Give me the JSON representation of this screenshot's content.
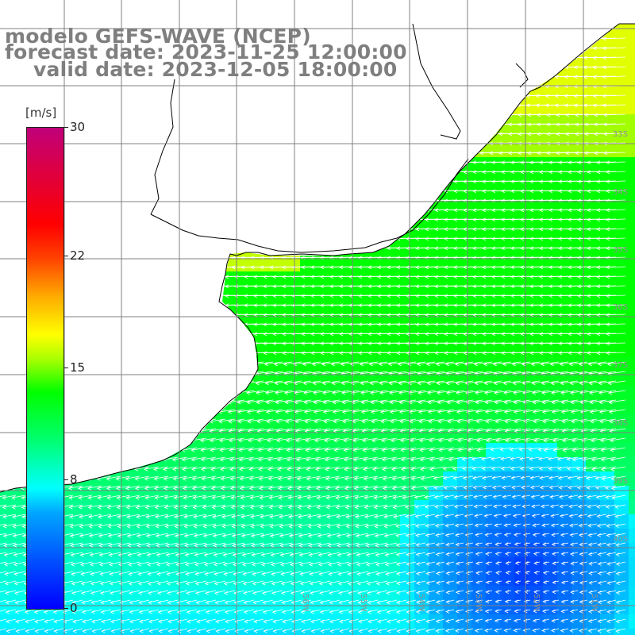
{
  "title": {
    "line1": "modelo GEFS-WAVE (NCEP)",
    "line2": "forecast date: 2023-11-25 12:00:00",
    "line3": "valid date: 2023-12-05 18:00:00"
  },
  "colorbar": {
    "unit": "[m/s]",
    "min": 0,
    "max": 30,
    "ticks": [
      {
        "value": 30,
        "label": "30"
      },
      {
        "value": 22,
        "label": "22"
      },
      {
        "value": 15,
        "label": "15"
      },
      {
        "value": 8,
        "label": "8"
      },
      {
        "value": 0,
        "label": "0"
      }
    ]
  },
  "map": {
    "variable": "wind speed",
    "grid_lon_labels": [
      "56W",
      "55W",
      "54W",
      "53W",
      "52W",
      "51W"
    ],
    "grid_lat_labels": [
      "33S",
      "34S",
      "35S",
      "36S",
      "37S",
      "38S",
      "39S",
      "40S"
    ],
    "colors": {
      "land": "#ffffff",
      "coast": "#000000",
      "grid": "#808080",
      "arrow": "#ffffff"
    }
  }
}
